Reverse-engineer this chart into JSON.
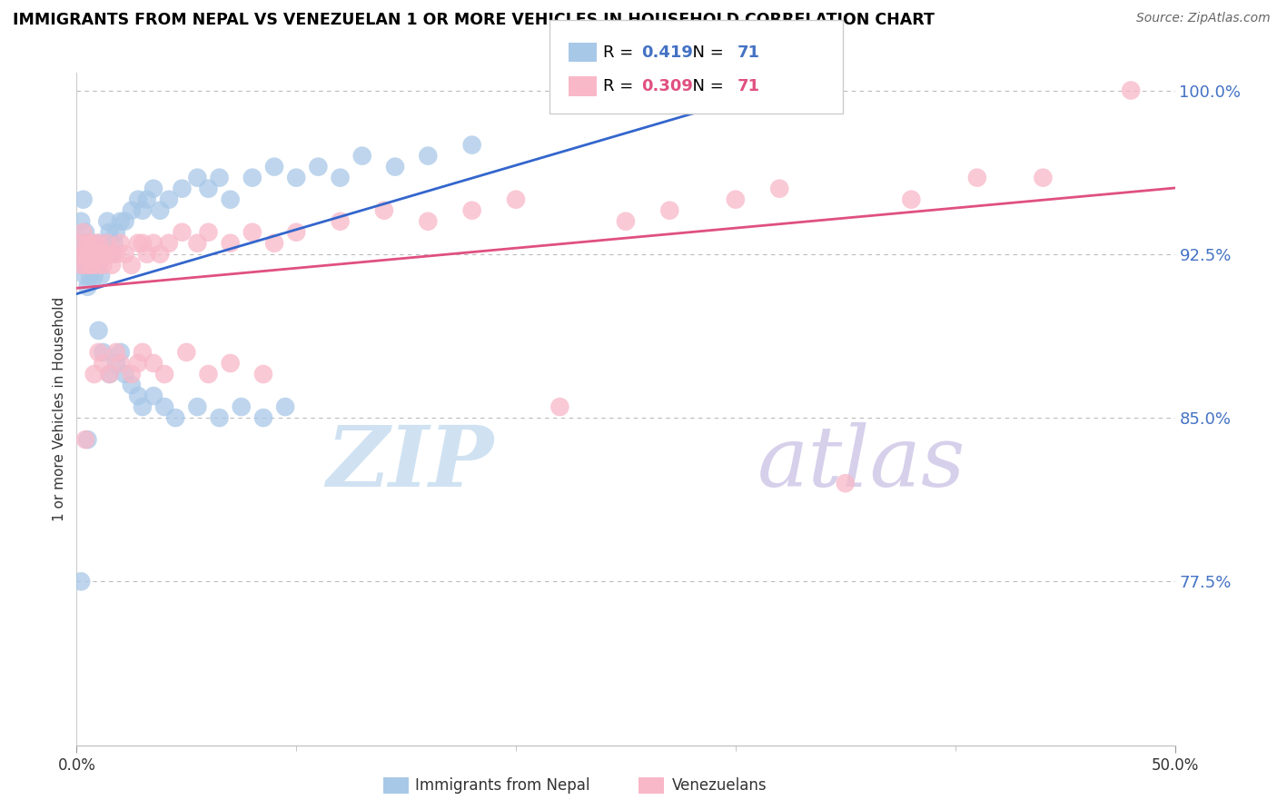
{
  "title": "IMMIGRANTS FROM NEPAL VS VENEZUELAN 1 OR MORE VEHICLES IN HOUSEHOLD CORRELATION CHART",
  "source": "Source: ZipAtlas.com",
  "ylabel": "1 or more Vehicles in Household",
  "legend_label1": "Immigrants from Nepal",
  "legend_label2": "Venezuelans",
  "R1": 0.419,
  "N1": 71,
  "R2": 0.309,
  "N2": 71,
  "color_nepal": "#a8c8e8",
  "color_venezuela": "#f8b8c8",
  "color_nepal_line": "#3366cc",
  "color_venezuela_line": "#e05080",
  "watermark_part1": "ZIP",
  "watermark_part2": "atlas",
  "xlim": [
    0.0,
    0.5
  ],
  "ylim": [
    0.7,
    1.008
  ],
  "yticks": [
    0.775,
    0.85,
    0.925,
    1.0
  ],
  "ytick_labels": [
    "77.5%",
    "85.0%",
    "92.5%",
    "100.0%"
  ],
  "xticks": [
    0.0,
    0.5
  ],
  "xtick_labels": [
    "0.0%",
    "50.0%"
  ],
  "nepal_x": [
    0.001,
    0.002,
    0.002,
    0.003,
    0.003,
    0.003,
    0.004,
    0.004,
    0.004,
    0.005,
    0.005,
    0.005,
    0.006,
    0.006,
    0.007,
    0.007,
    0.008,
    0.008,
    0.009,
    0.01,
    0.01,
    0.011,
    0.012,
    0.013,
    0.014,
    0.015,
    0.016,
    0.017,
    0.018,
    0.02,
    0.022,
    0.025,
    0.028,
    0.03,
    0.032,
    0.035,
    0.038,
    0.042,
    0.048,
    0.055,
    0.06,
    0.065,
    0.07,
    0.08,
    0.09,
    0.1,
    0.11,
    0.12,
    0.13,
    0.145,
    0.16,
    0.18,
    0.01,
    0.012,
    0.015,
    0.018,
    0.02,
    0.022,
    0.025,
    0.028,
    0.03,
    0.035,
    0.04,
    0.045,
    0.055,
    0.065,
    0.075,
    0.085,
    0.095,
    0.005,
    0.002
  ],
  "nepal_y": [
    0.93,
    0.925,
    0.94,
    0.93,
    0.92,
    0.95,
    0.925,
    0.915,
    0.935,
    0.92,
    0.91,
    0.93,
    0.92,
    0.915,
    0.925,
    0.93,
    0.92,
    0.915,
    0.925,
    0.92,
    0.93,
    0.915,
    0.925,
    0.93,
    0.94,
    0.935,
    0.925,
    0.93,
    0.935,
    0.94,
    0.94,
    0.945,
    0.95,
    0.945,
    0.95,
    0.955,
    0.945,
    0.95,
    0.955,
    0.96,
    0.955,
    0.96,
    0.95,
    0.96,
    0.965,
    0.96,
    0.965,
    0.96,
    0.97,
    0.965,
    0.97,
    0.975,
    0.89,
    0.88,
    0.87,
    0.875,
    0.88,
    0.87,
    0.865,
    0.86,
    0.855,
    0.86,
    0.855,
    0.85,
    0.855,
    0.85,
    0.855,
    0.85,
    0.855,
    0.84,
    0.775
  ],
  "venezuela_x": [
    0.001,
    0.002,
    0.003,
    0.003,
    0.004,
    0.004,
    0.005,
    0.005,
    0.006,
    0.006,
    0.007,
    0.007,
    0.008,
    0.008,
    0.009,
    0.01,
    0.01,
    0.011,
    0.012,
    0.013,
    0.014,
    0.015,
    0.016,
    0.018,
    0.02,
    0.022,
    0.025,
    0.028,
    0.03,
    0.032,
    0.035,
    0.038,
    0.042,
    0.048,
    0.055,
    0.06,
    0.07,
    0.08,
    0.09,
    0.1,
    0.12,
    0.14,
    0.16,
    0.18,
    0.2,
    0.22,
    0.25,
    0.27,
    0.3,
    0.32,
    0.35,
    0.38,
    0.41,
    0.44,
    0.48,
    0.008,
    0.01,
    0.012,
    0.015,
    0.018,
    0.02,
    0.025,
    0.028,
    0.03,
    0.035,
    0.04,
    0.05,
    0.06,
    0.07,
    0.085,
    0.004
  ],
  "venezuela_y": [
    0.93,
    0.92,
    0.925,
    0.935,
    0.925,
    0.92,
    0.93,
    0.925,
    0.92,
    0.93,
    0.925,
    0.92,
    0.925,
    0.93,
    0.925,
    0.92,
    0.93,
    0.925,
    0.92,
    0.925,
    0.93,
    0.925,
    0.92,
    0.925,
    0.93,
    0.925,
    0.92,
    0.93,
    0.93,
    0.925,
    0.93,
    0.925,
    0.93,
    0.935,
    0.93,
    0.935,
    0.93,
    0.935,
    0.93,
    0.935,
    0.94,
    0.945,
    0.94,
    0.945,
    0.95,
    0.855,
    0.94,
    0.945,
    0.95,
    0.955,
    0.82,
    0.95,
    0.96,
    0.96,
    1.0,
    0.87,
    0.88,
    0.875,
    0.87,
    0.88,
    0.875,
    0.87,
    0.875,
    0.88,
    0.875,
    0.87,
    0.88,
    0.87,
    0.875,
    0.87,
    0.84
  ]
}
